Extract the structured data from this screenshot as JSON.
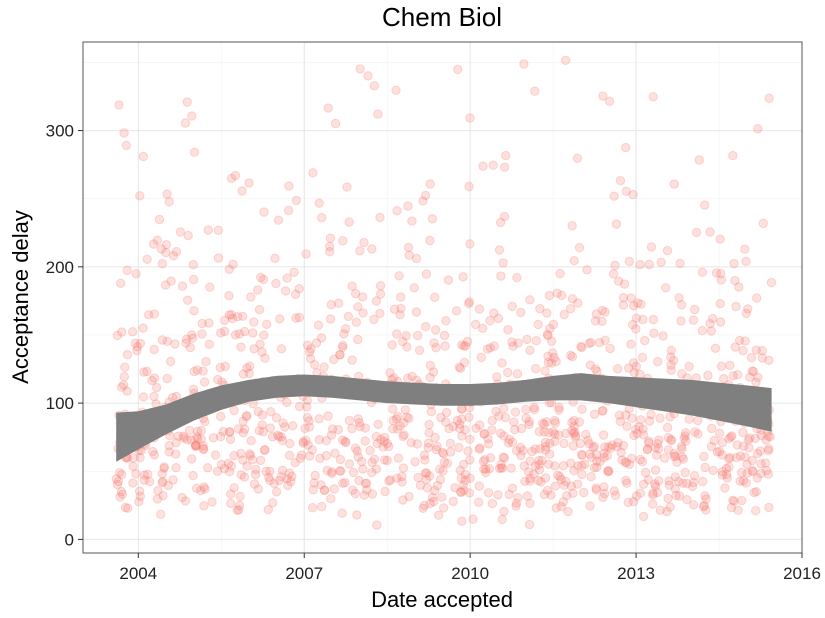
{
  "chart_data": {
    "type": "scatter",
    "title": "Chem Biol",
    "xlabel": "Date accepted",
    "ylabel": "Acceptance delay",
    "x_ticks": [
      "2004",
      "2007",
      "2010",
      "2013",
      "2016"
    ],
    "x_tick_years": [
      2004,
      2007,
      2010,
      2013,
      2016
    ],
    "y_ticks": [
      "0",
      "100",
      "200",
      "300"
    ],
    "xlim_years": [
      2003.0,
      2016.0
    ],
    "ylim": [
      -10,
      365
    ],
    "grid": true,
    "point_color": "#f8766d",
    "point_opacity": 0.22,
    "smooth_color": "#7f7f7f",
    "point_count": 1300,
    "x_range_years": [
      2003.6,
      2015.45
    ],
    "smooth": {
      "x": [
        2003.6,
        2004.0,
        2004.5,
        2005.0,
        2005.5,
        2006.0,
        2006.5,
        2007.0,
        2007.5,
        2008.0,
        2008.5,
        2009.0,
        2009.5,
        2010.0,
        2010.5,
        2011.0,
        2011.5,
        2012.0,
        2012.5,
        2013.0,
        2013.5,
        2014.0,
        2014.5,
        2015.0,
        2015.45
      ],
      "mean": [
        75,
        80,
        88,
        97,
        104,
        109,
        112,
        113,
        112,
        110,
        108,
        107,
        106,
        106,
        107,
        109,
        111,
        112,
        110,
        108,
        106,
        104,
        101,
        98,
        95
      ],
      "lower": [
        57,
        66,
        77,
        87,
        95,
        101,
        104,
        105,
        104,
        102,
        100,
        99,
        98,
        98,
        99,
        101,
        102,
        102,
        100,
        97,
        94,
        91,
        87,
        83,
        79
      ],
      "upper": [
        93,
        94,
        99,
        107,
        113,
        117,
        120,
        121,
        120,
        118,
        116,
        115,
        114,
        114,
        115,
        117,
        120,
        122,
        120,
        119,
        118,
        117,
        115,
        113,
        111
      ]
    }
  }
}
